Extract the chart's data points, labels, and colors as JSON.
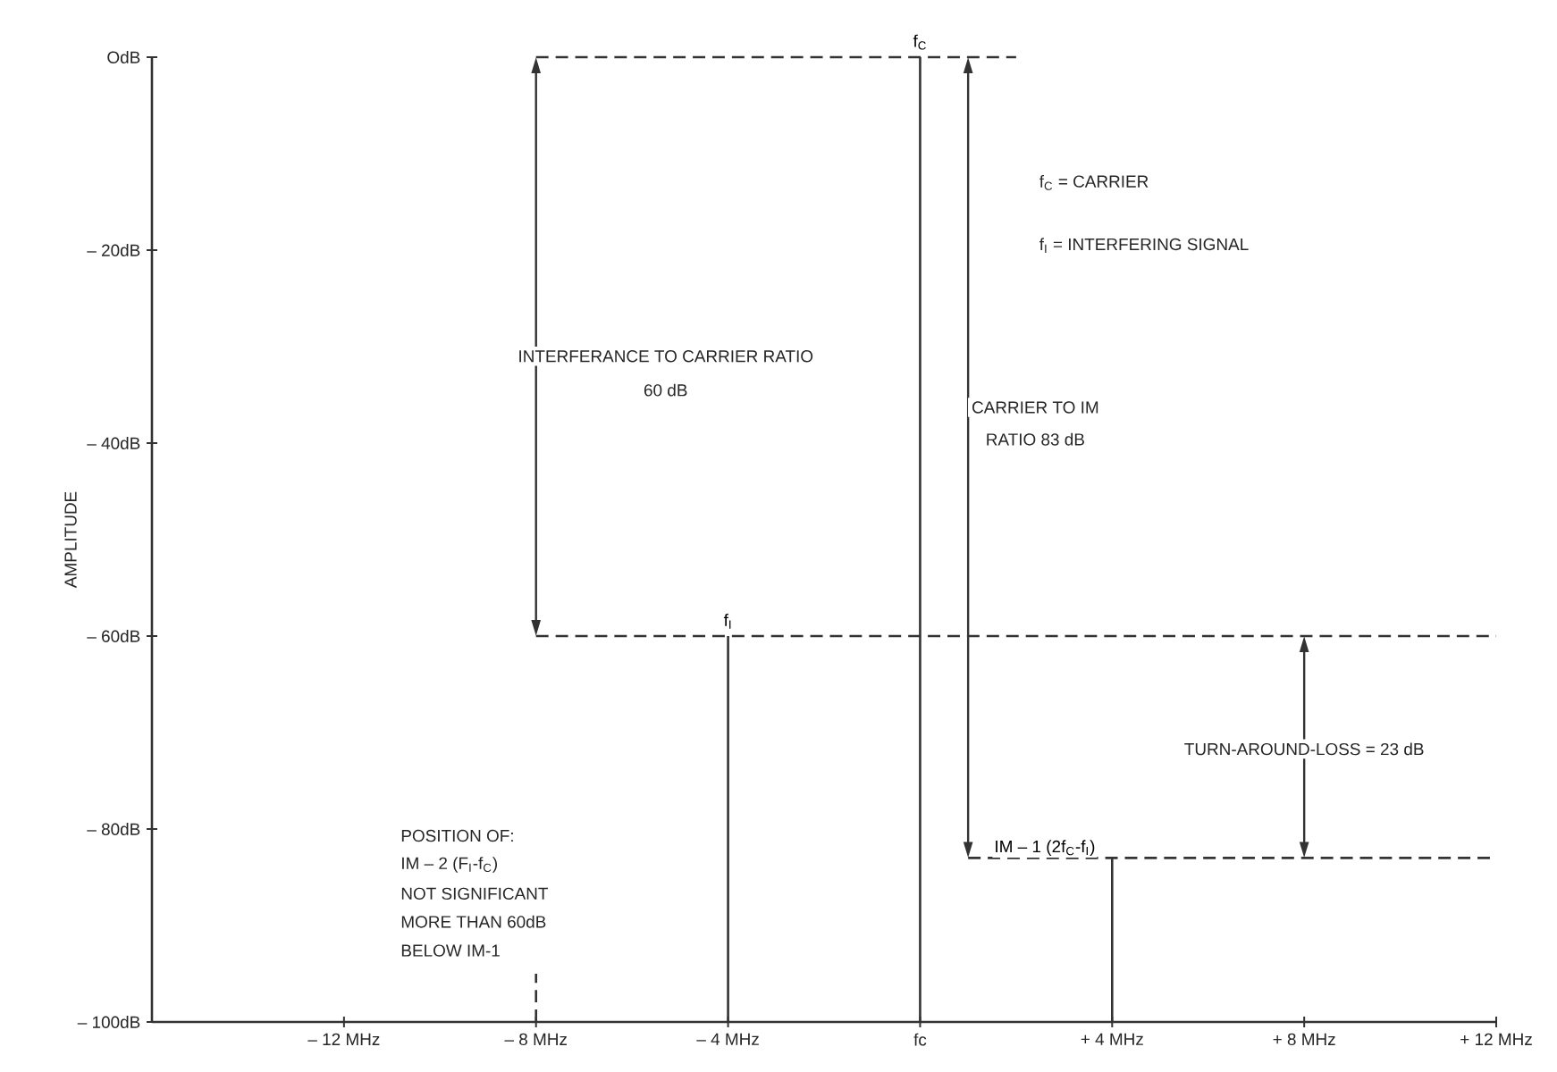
{
  "chart_data": {
    "type": "line",
    "ylabel": "AMPLITUDE",
    "xlim": [
      -16,
      12
    ],
    "ylim": [
      -100,
      0
    ],
    "xticks": [
      {
        "value": -12,
        "label": "– 12 MHz"
      },
      {
        "value": -8,
        "label": "– 8 MHz"
      },
      {
        "value": -4,
        "label": "– 4 MHz"
      },
      {
        "value": 0,
        "label": "fc"
      },
      {
        "value": 4,
        "label": "+ 4 MHz"
      },
      {
        "value": 8,
        "label": "+ 8 MHz"
      },
      {
        "value": 12,
        "label": "+ 12 MHz"
      }
    ],
    "yticks": [
      {
        "value": 0,
        "label": "OdB"
      },
      {
        "value": -20,
        "label": "– 20dB"
      },
      {
        "value": -40,
        "label": "– 40dB"
      },
      {
        "value": -60,
        "label": "– 60dB"
      },
      {
        "value": -80,
        "label": "– 80dB"
      },
      {
        "value": -100,
        "label": "– 100dB"
      }
    ],
    "series": [
      {
        "color": "#333333",
        "x": [
          -4,
          -4
        ],
        "values": [
          -100,
          -60
        ]
      },
      {
        "color": "#333333",
        "x": [
          0,
          0
        ],
        "values": [
          -100,
          0
        ]
      },
      {
        "color": "#333333",
        "x": [
          4,
          4
        ],
        "values": [
          -100,
          -83
        ]
      },
      {
        "color": "#333333",
        "x": [
          -8,
          -8
        ],
        "values": [
          -100,
          -95
        ],
        "line_style": "dashed"
      },
      {
        "color": "#333333",
        "x": [
          -8,
          2
        ],
        "values": [
          0,
          0
        ],
        "line_style": "dashed"
      },
      {
        "color": "#333333",
        "x": [
          -8,
          12
        ],
        "values": [
          -60,
          -60
        ],
        "line_style": "dashed"
      },
      {
        "color": "#333333",
        "x": [
          1,
          12
        ],
        "values": [
          -83,
          -83
        ],
        "line_style": "dashed"
      }
    ],
    "annotations": [
      {
        "text": "f$_{C}$",
        "x": 0,
        "y": 0
      },
      {
        "text": "f$_{I}$",
        "x": -4,
        "y": -60
      },
      "INTERFERANCE TO CARRIER RATIO",
      "60 dB",
      "CARRIER TO IM",
      "RATIO 83 dB",
      "f$_{C}$ = CARRIER",
      "f$_{I}$ = INTERFERING SIGNAL",
      "TURN-AROUND-LOSS = 23 dB",
      {
        "text": "IM – 1 (2f$_{C}$-f$_{I}$)",
        "x": 4,
        "y": -83
      },
      "POSITION OF:",
      "IM  – 2 (F$_{I}$-f$_{C}$)",
      "NOT SIGNIFICANT",
      "MORE THAN 60dB",
      "BELOW IM-1"
    ]
  }
}
